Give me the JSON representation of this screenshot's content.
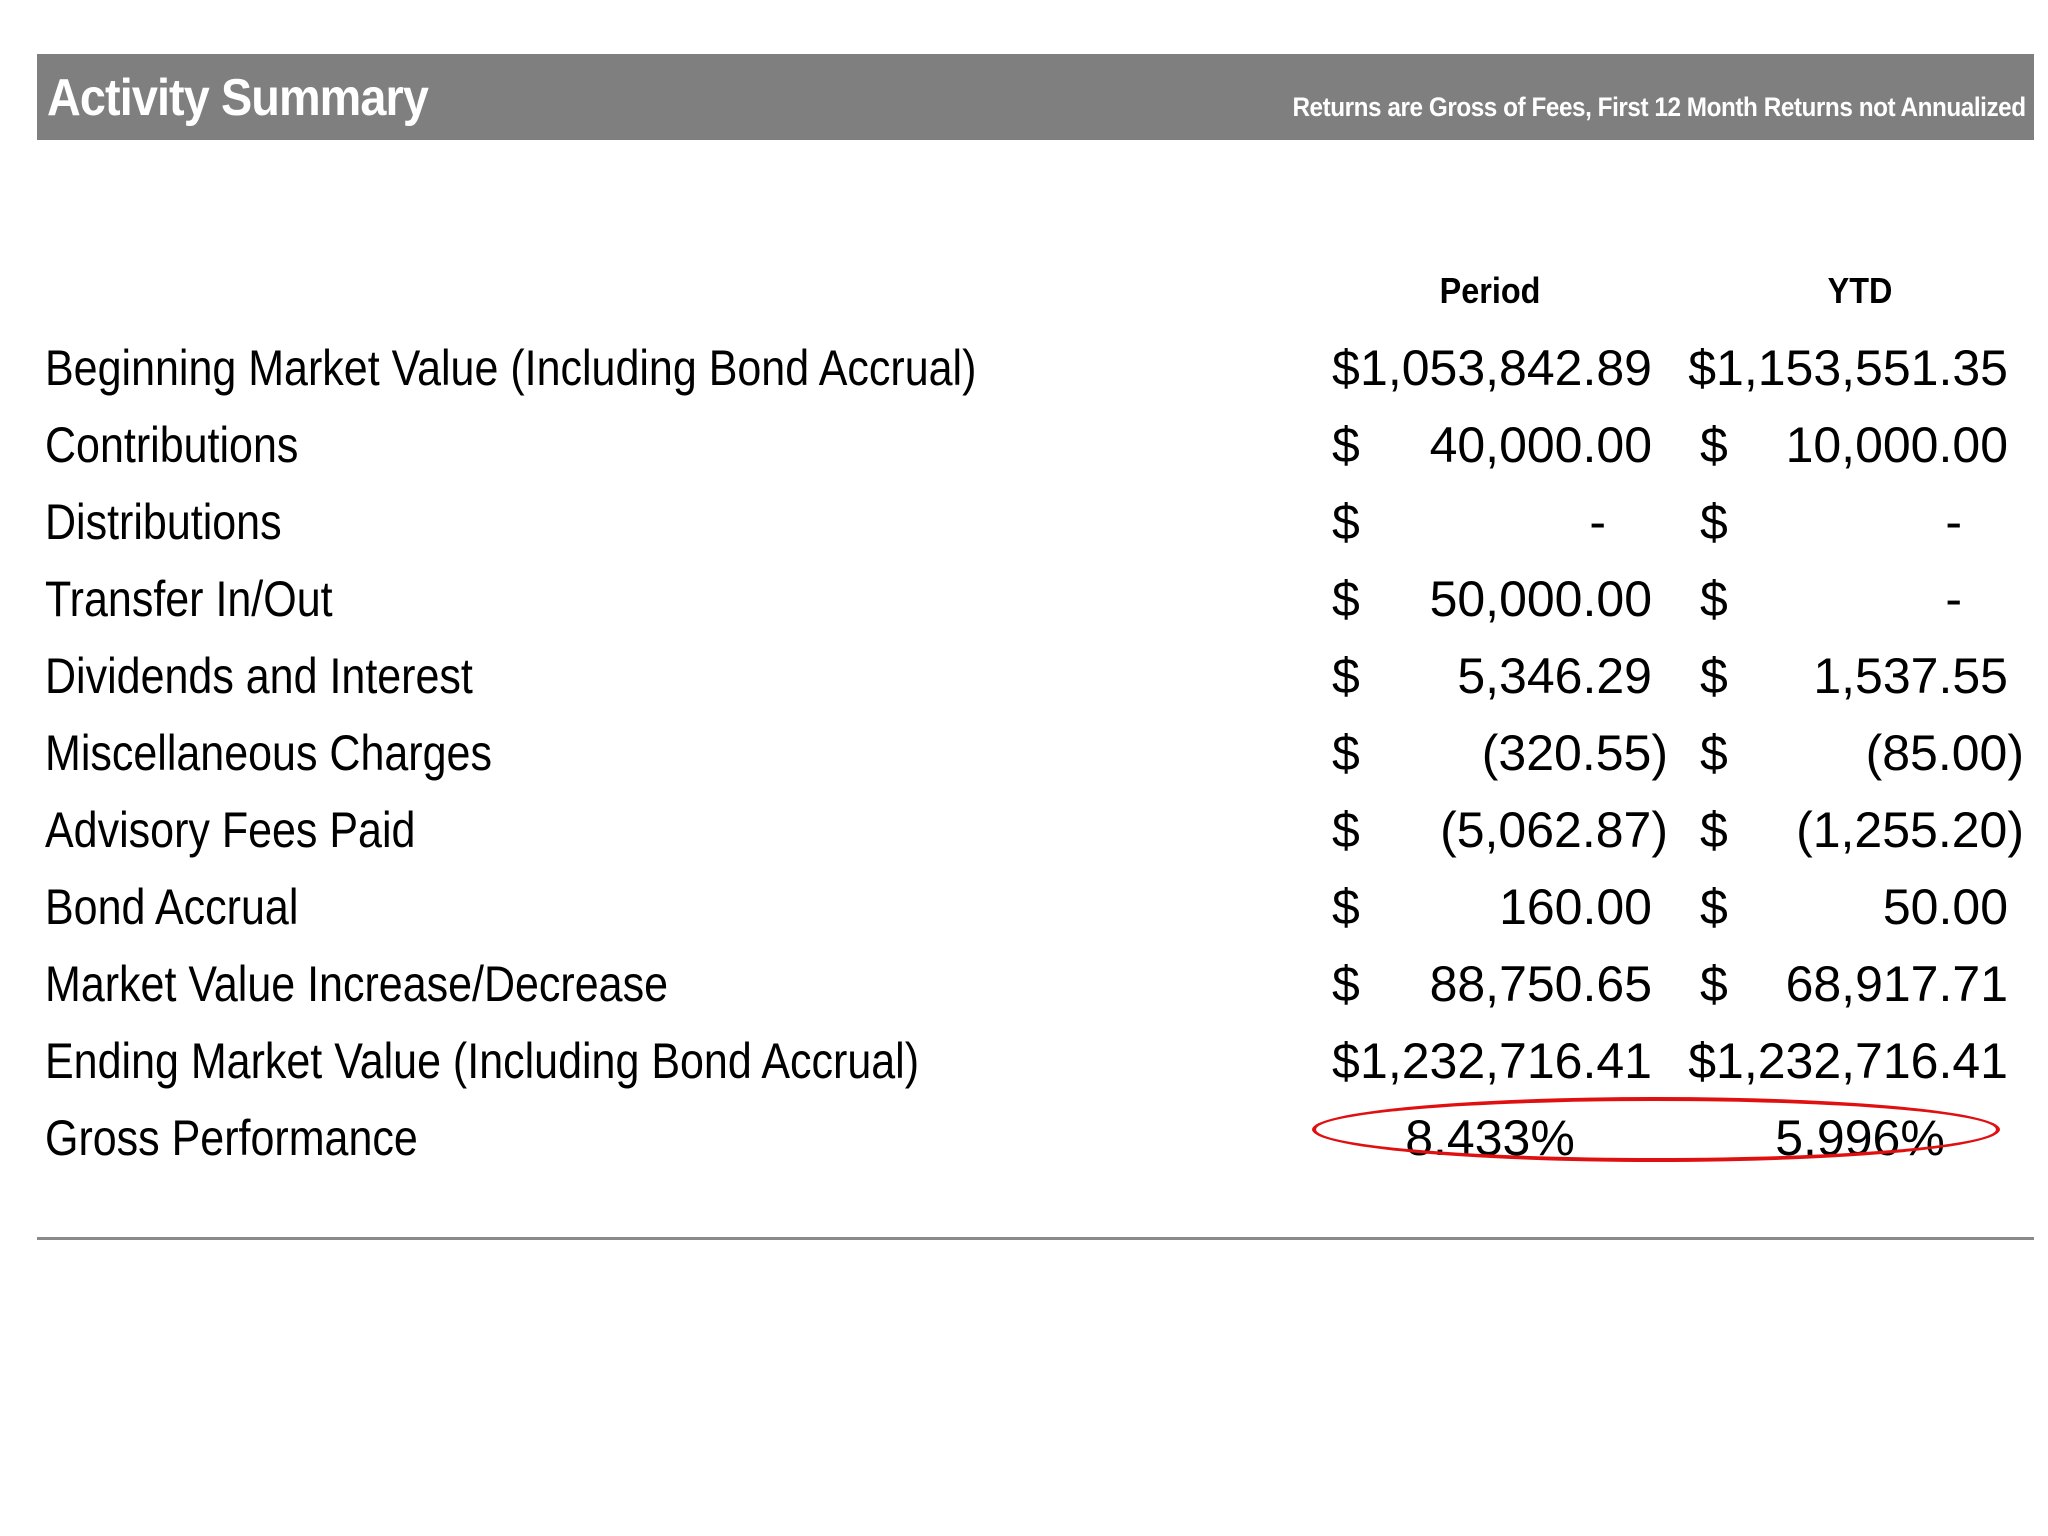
{
  "header": {
    "title": "Activity Summary",
    "note": "Returns are Gross of Fees, First 12 Month Returns not Annualized"
  },
  "columns": {
    "period": "Period",
    "ytd": "YTD"
  },
  "rows": [
    {
      "label": "Beginning Market Value (Including Bond Accrual)",
      "period_dollar": "$",
      "period": "1,053,842.89",
      "ytd_dollar": "",
      "ytd": "$1,153,551.35"
    },
    {
      "label": "Contributions",
      "period_dollar": "$",
      "period": "40,000.00",
      "ytd_dollar": "$",
      "ytd": "10,000.00"
    },
    {
      "label": "Distributions",
      "period_dollar": "$",
      "period": "-",
      "ytd_dollar": "$",
      "ytd": "-"
    },
    {
      "label": "Transfer In/Out",
      "period_dollar": "$",
      "period": "50,000.00",
      "ytd_dollar": "$",
      "ytd": "-"
    },
    {
      "label": "Dividends and Interest",
      "period_dollar": "$",
      "period": "5,346.29",
      "ytd_dollar": "$",
      "ytd": "1,537.55"
    },
    {
      "label": "Miscellaneous Charges",
      "period_dollar": "$",
      "period": "(320.55)",
      "ytd_dollar": "$",
      "ytd": "(85.00)"
    },
    {
      "label": "Advisory Fees Paid",
      "period_dollar": "$",
      "period": "(5,062.87)",
      "ytd_dollar": "$",
      "ytd": "(1,255.20)"
    },
    {
      "label": "Bond Accrual",
      "period_dollar": "$",
      "period": "160.00",
      "ytd_dollar": "$",
      "ytd": "50.00"
    },
    {
      "label": "Market Value Increase/Decrease",
      "period_dollar": "$",
      "period": "88,750.65",
      "ytd_dollar": "$",
      "ytd": "68,917.71"
    },
    {
      "label": "Ending Market Value (Including Bond Accrual)",
      "period_dollar": "$",
      "period": "1,232,716.41",
      "ytd_dollar": "",
      "ytd": "$1,232,716.41"
    }
  ],
  "performance": {
    "label": "Gross Performance",
    "period": "8.433%",
    "ytd": "5.996%"
  },
  "colors": {
    "header_bg": "#7f7f7f",
    "highlight": "#e01010",
    "divider": "#8a8a8a"
  }
}
